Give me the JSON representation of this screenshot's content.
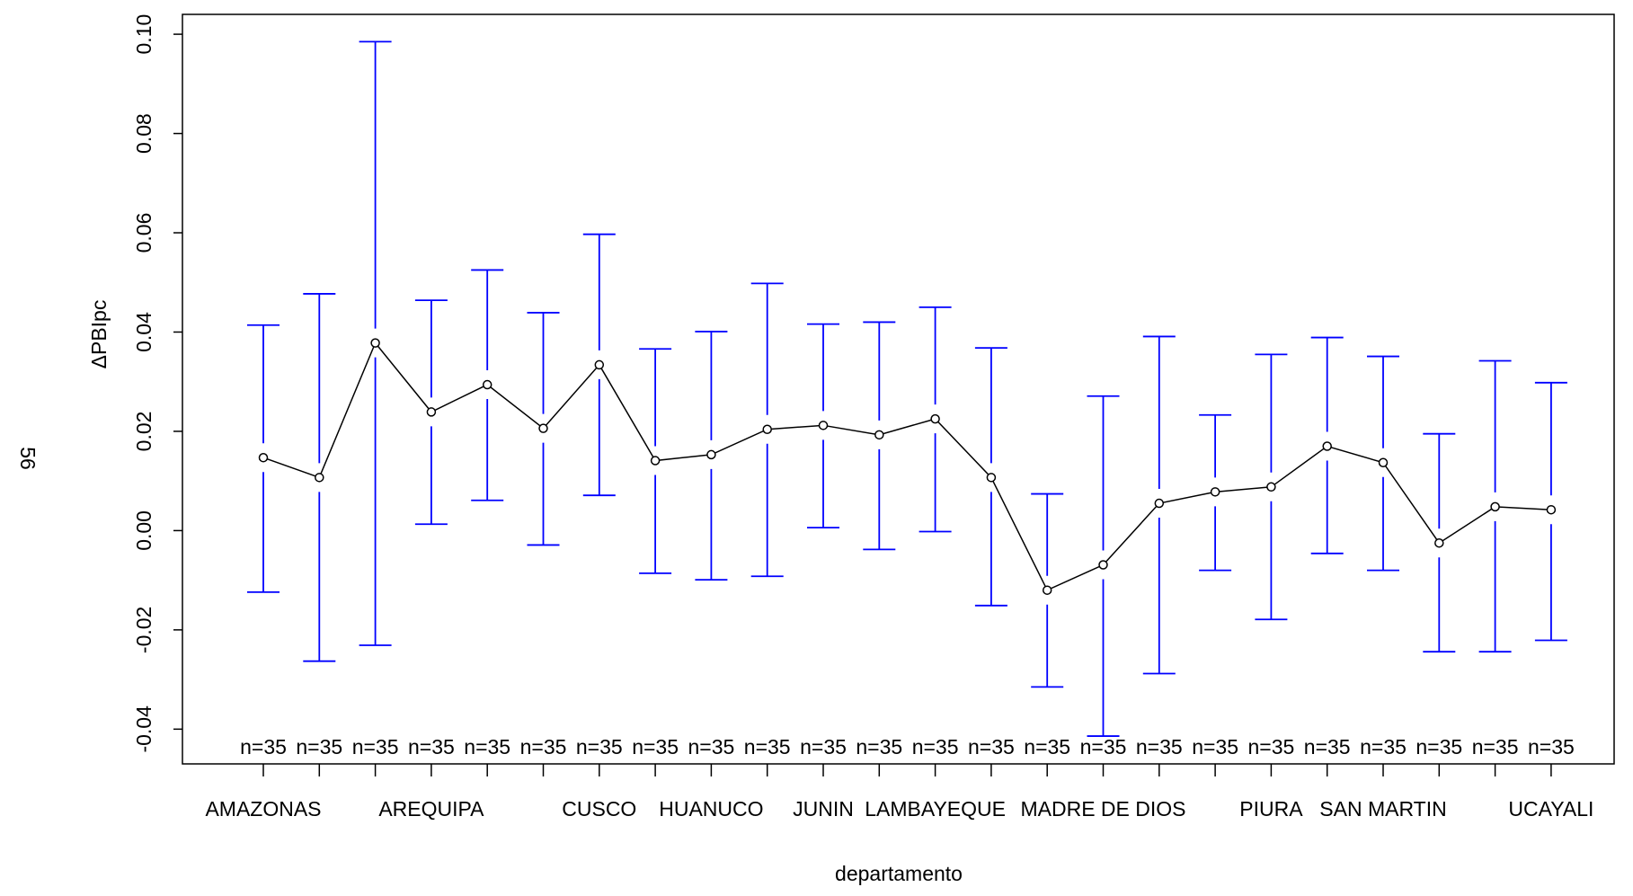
{
  "page_number": "56",
  "chart_data": {
    "type": "line",
    "y_label": "ΔPBIpc",
    "x_label": "departamento",
    "categories": [
      "AMAZONAS",
      null,
      null,
      "AREQUIPA",
      null,
      null,
      "CUSCO",
      null,
      "HUANUCO",
      null,
      "JUNIN",
      null,
      "LAMBAYEQUE",
      null,
      null,
      "MADRE DE DIOS",
      null,
      null,
      "PIURA",
      null,
      "SAN MARTIN",
      null,
      null,
      "UCAYALI"
    ],
    "n_labels": [
      "n=35",
      "n=35",
      "n=35",
      "n=35",
      "n=35",
      "n=35",
      "n=35",
      "n=35",
      "n=35",
      "n=35",
      "n=35",
      "n=35",
      "n=35",
      "n=35",
      "n=35",
      "n=35",
      "n=35",
      "n=35",
      "n=35",
      "n=35",
      "n=35",
      "n=35",
      "n=35",
      "n=35"
    ],
    "series": [
      {
        "color": "#000000",
        "error_color": "#0000ff",
        "values": [
          0.0147,
          0.0107,
          0.0378,
          0.0239,
          0.0294,
          0.0206,
          0.0334,
          0.0141,
          0.0153,
          0.0204,
          0.0212,
          0.0193,
          0.0225,
          0.0107,
          -0.012,
          -0.0069,
          0.0055,
          0.0078,
          0.0088,
          0.017,
          0.0137,
          -0.0025,
          0.0048,
          0.0042
        ],
        "upper": [
          0.0414,
          0.0477,
          0.0985,
          0.0464,
          0.0525,
          0.0439,
          0.0597,
          0.0366,
          0.0401,
          0.0498,
          0.0416,
          0.042,
          0.045,
          0.0368,
          0.0074,
          0.0271,
          0.0391,
          0.0233,
          0.0355,
          0.0389,
          0.0351,
          0.0195,
          0.0342,
          0.0298
        ],
        "lower": [
          -0.0124,
          -0.0263,
          -0.0231,
          0.0013,
          0.0061,
          -0.0029,
          0.0071,
          -0.0086,
          -0.0099,
          -0.0092,
          0.0006,
          -0.0038,
          -0.0002,
          -0.0151,
          -0.0315,
          -0.0414,
          -0.0288,
          -0.008,
          -0.0179,
          -0.0046,
          -0.008,
          -0.0244,
          -0.0244,
          -0.0221
        ]
      }
    ],
    "ylim": [
      -0.047,
      0.104
    ],
    "yticks": [
      -0.04,
      -0.02,
      {
        "value": 0,
        "label": "0.00"
      },
      0.02,
      0.04,
      0.06,
      0.08,
      {
        "value": 0.1,
        "label": "0.10"
      }
    ]
  }
}
